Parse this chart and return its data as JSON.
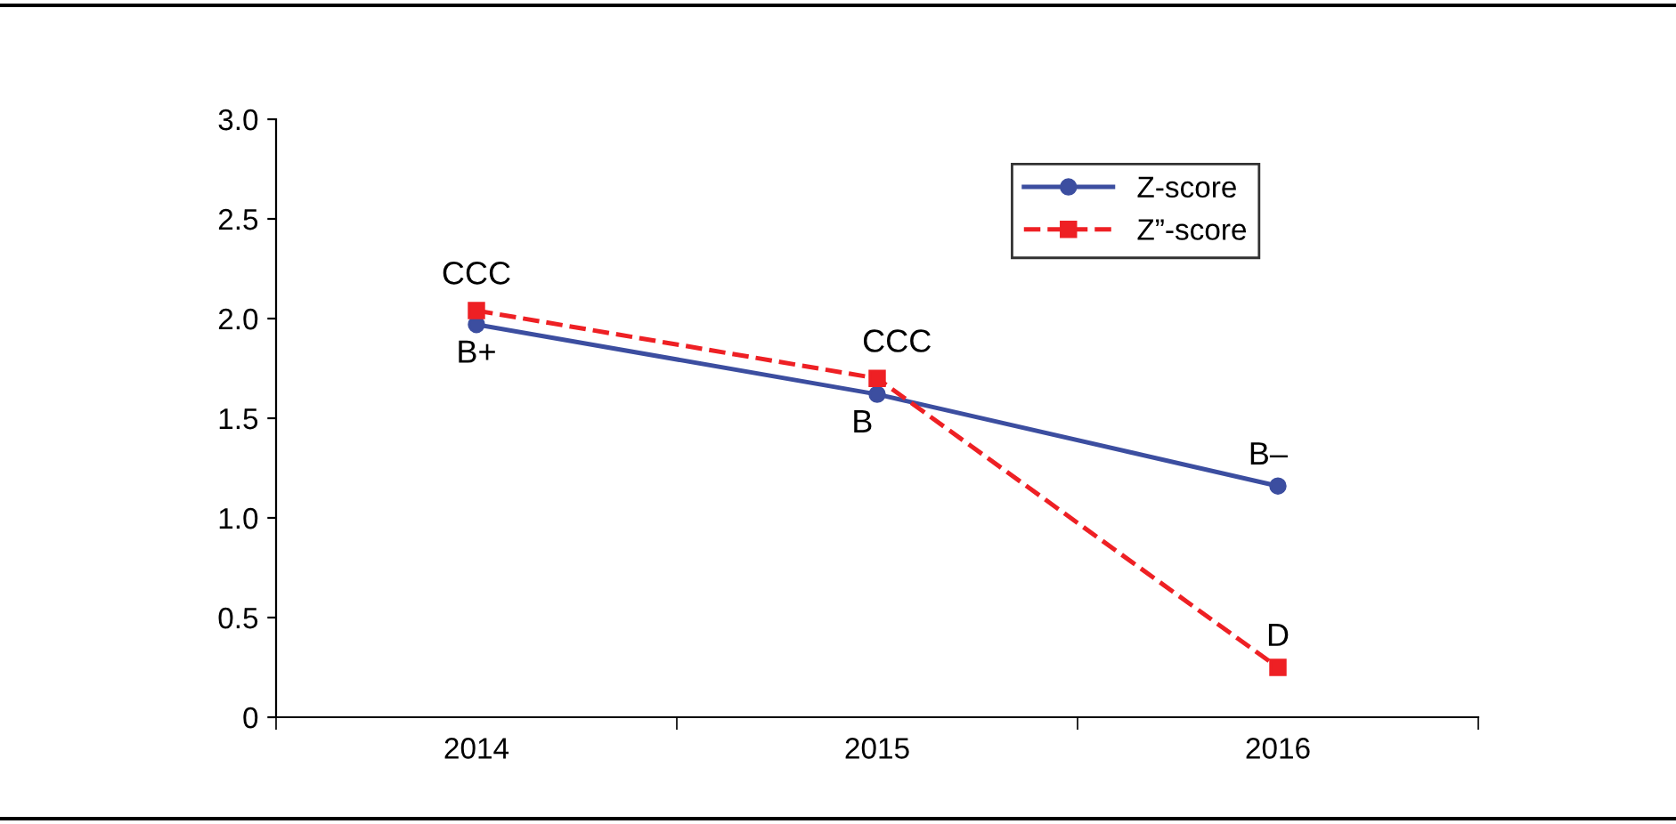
{
  "chart_data": {
    "type": "line",
    "categories": [
      "2014",
      "2015",
      "2016"
    ],
    "series": [
      {
        "name": "Z-score",
        "color": "#3c4ea0",
        "values": [
          1.97,
          1.62,
          1.16
        ],
        "marker": "circle",
        "line_style": "solid"
      },
      {
        "name": "Z”-score",
        "color": "#ee2024",
        "values": [
          2.04,
          1.7,
          0.25
        ],
        "marker": "square",
        "line_style": "dashed"
      }
    ],
    "ylim": [
      0,
      3.0
    ],
    "yticks": [
      0,
      {
        "value": 0.5,
        "label": "0.5"
      },
      {
        "value": 1,
        "label": "1.0"
      },
      {
        "value": 1.5,
        "label": "1.5"
      },
      {
        "value": 2,
        "label": "2.0"
      },
      {
        "value": 2.5,
        "label": "2.5"
      },
      {
        "value": 3,
        "label": "3.0"
      }
    ],
    "grid": false,
    "legend": "top right",
    "annotations": [
      {
        "text": "CCC",
        "x": "2014",
        "y": 2.04
      },
      {
        "text": "B+",
        "x": "2014",
        "y": 1.97
      },
      {
        "text": "CCC",
        "x": "2015",
        "y": 1.7
      },
      {
        "text": "B",
        "x": "2015",
        "y": 1.62
      },
      {
        "text": "B–",
        "x": "2016",
        "y": 1.16
      },
      {
        "text": "D",
        "x": "2016",
        "y": 0.25
      }
    ]
  }
}
